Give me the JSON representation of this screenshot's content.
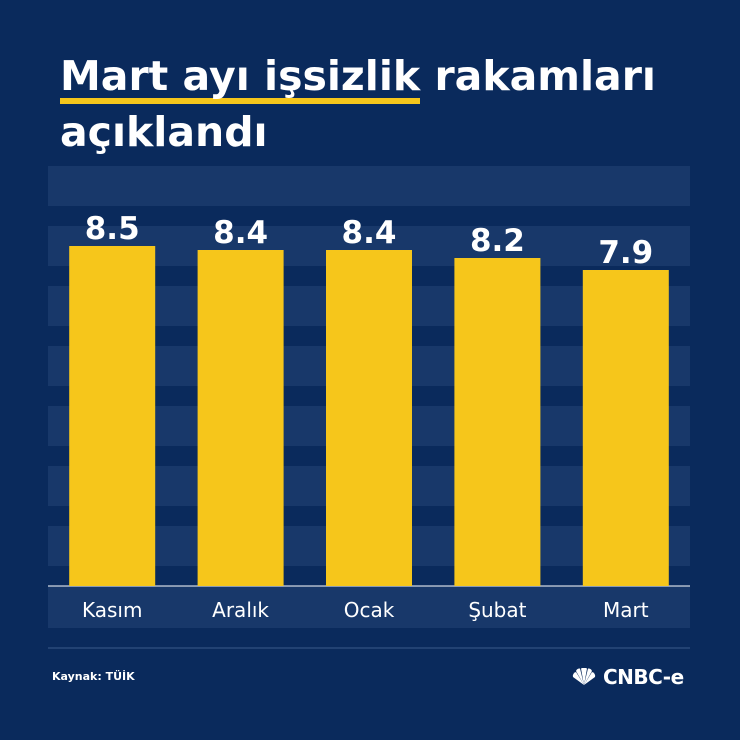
{
  "title": {
    "highlight": "Mart ayı işsizlik",
    "rest": " rakamları açıklandı"
  },
  "source": "Kaynak: TÜİK",
  "brand": "CNBC-e",
  "colors": {
    "background": "#0a2a5c",
    "bar": "#f6c61b",
    "stripe": "#18386a",
    "text": "#ffffff"
  },
  "chart_data": {
    "type": "bar",
    "categories": [
      "Kasım",
      "Aralık",
      "Ocak",
      "Şubat",
      "Mart"
    ],
    "values": [
      8.5,
      8.4,
      8.4,
      8.2,
      7.9
    ],
    "data_labels": [
      "8.5",
      "8.4",
      "8.4",
      "8.2",
      "7.9"
    ],
    "xlabel": "",
    "ylabel": "",
    "ylim": [
      0,
      10.5
    ],
    "grid": "horizontal bands"
  }
}
